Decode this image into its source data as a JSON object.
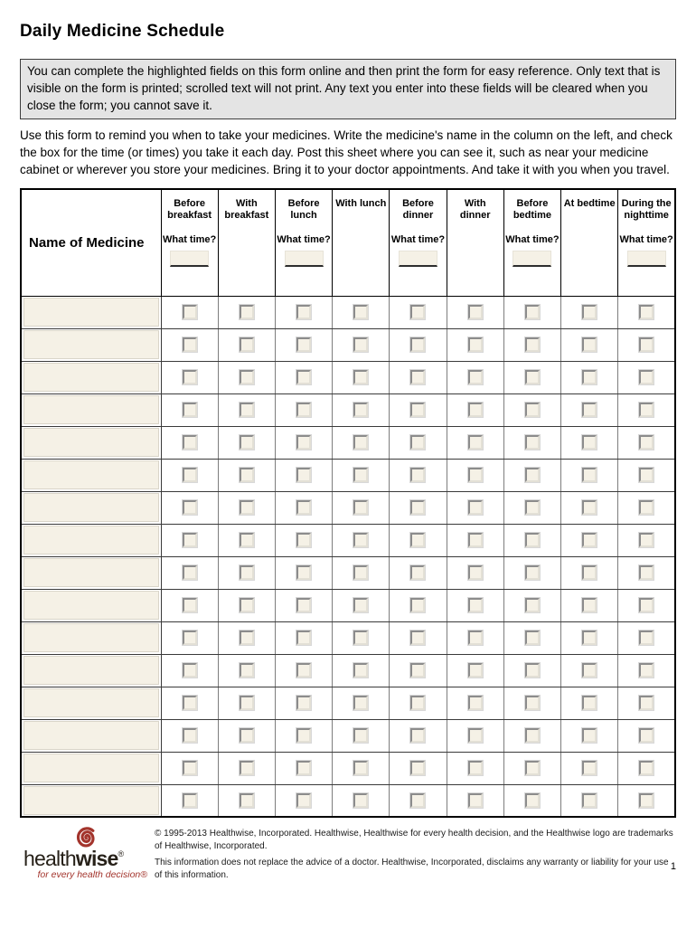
{
  "page": {
    "title": "Daily Medicine Schedule",
    "notice": "You can complete the highlighted fields on this form online and then print the form for easy reference. Only text that is visible on the form is printed; scrolled text will not print. Any text you enter into these fields will be cleared when you close the form; you cannot save it.",
    "instructions": "Use this form to remind you when to take your medicines. Write the medicine's name in the column on the left, and check the box for the time (or times) you take it each day. Post this sheet where you can see it, such as near your medicine cabinet or wherever you store your medicines. Bring it to your doctor appointments. And take it with you when you travel.",
    "page_number": "1"
  },
  "table": {
    "name_column_header": "Name of Medicine",
    "what_time_label": "What time?",
    "time_input_value": "",
    "medicine_name_value": "",
    "row_count": 16,
    "columns": [
      {
        "id": "before-breakfast",
        "label": "Before breakfast",
        "has_time_input": true
      },
      {
        "id": "with-breakfast",
        "label": "With breakfast",
        "has_time_input": false
      },
      {
        "id": "before-lunch",
        "label": "Before lunch",
        "has_time_input": true
      },
      {
        "id": "with-lunch",
        "label": "With lunch",
        "has_time_input": false
      },
      {
        "id": "before-dinner",
        "label": "Before dinner",
        "has_time_input": true
      },
      {
        "id": "with-dinner",
        "label": "With dinner",
        "has_time_input": false
      },
      {
        "id": "before-bedtime",
        "label": "Before bedtime",
        "has_time_input": true
      },
      {
        "id": "at-bedtime",
        "label": "At bedtime",
        "has_time_input": false
      },
      {
        "id": "during-nighttime",
        "label": "During the nighttime",
        "has_time_input": true
      }
    ]
  },
  "footer": {
    "logo": {
      "health": "health",
      "wise": "wise",
      "reg": "®",
      "tagline": "for every health decision®"
    },
    "copyright": "© 1995-2013 Healthwise, Incorporated. Healthwise, Healthwise for every health decision, and the Healthwise logo are trademarks of Healthwise, Incorporated.",
    "disclaimer": "This information does not replace the advice of a doctor. Healthwise, Incorporated, disclaims any warranty or liability for your use of this information."
  },
  "colors": {
    "highlight_field": "#f5f1e6",
    "notice_bg": "#e4e4e4",
    "logo_red": "#a3342c"
  }
}
